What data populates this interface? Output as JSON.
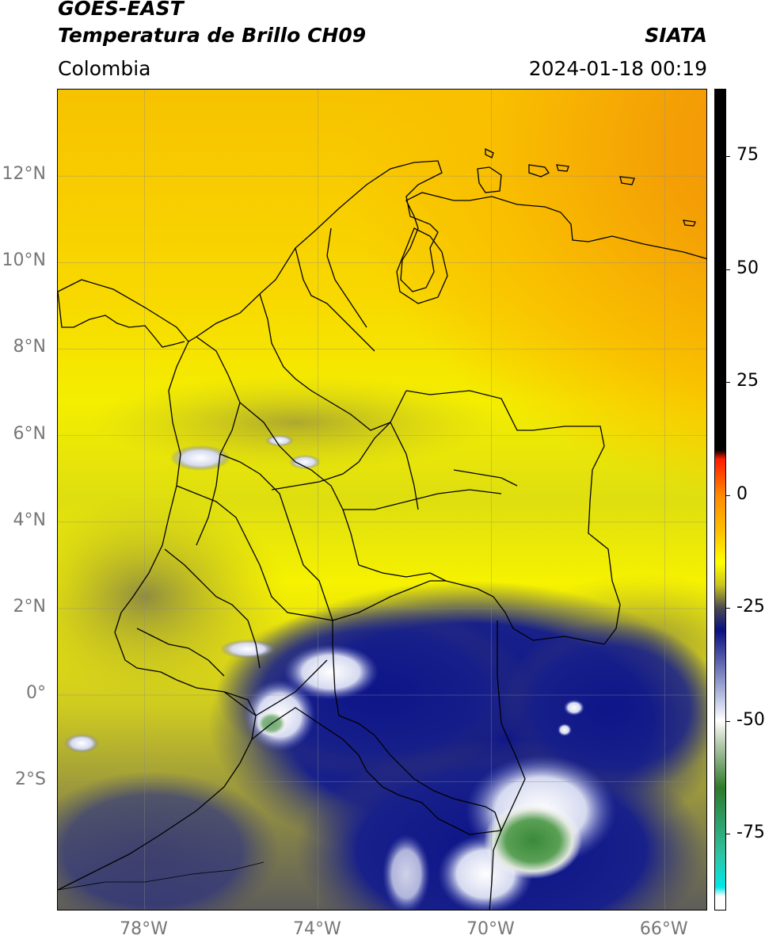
{
  "header": {
    "satellite": "GOES-EAST",
    "product": "Temperatura de Brillo CH09",
    "brand": "SIATA",
    "region": "Colombia",
    "timestamp": "2024-01-18 00:19"
  },
  "map": {
    "lon_range": [
      -80,
      -65
    ],
    "lat_range": [
      -5,
      14
    ],
    "lat_ticks": [
      {
        "value": 12,
        "label": "12°N"
      },
      {
        "value": 10,
        "label": "10°N"
      },
      {
        "value": 8,
        "label": "8°N"
      },
      {
        "value": 6,
        "label": "6°N"
      },
      {
        "value": 4,
        "label": "4°N"
      },
      {
        "value": 2,
        "label": "2°N"
      },
      {
        "value": 0,
        "label": "0°"
      },
      {
        "value": -2,
        "label": "2°S"
      }
    ],
    "lon_ticks": [
      {
        "value": -78,
        "label": "78°W"
      },
      {
        "value": -74,
        "label": "74°W"
      },
      {
        "value": -70,
        "label": "70°W"
      },
      {
        "value": -66,
        "label": "66°W"
      }
    ],
    "gridlines": true,
    "colors": {
      "warm_orange": "#f28a0a",
      "orange": "#f9b900",
      "yellow": "#f8f500",
      "olive": "#c8c424",
      "dark_olive": "#6f6d55",
      "navy": "#101a86",
      "white": "#ffffff",
      "green": "#3f8e3c",
      "border": "#000000"
    }
  },
  "colorbar": {
    "unit_range": [
      -92,
      90
    ],
    "ticks": [
      {
        "value": 75,
        "label": "75"
      },
      {
        "value": 50,
        "label": "50"
      },
      {
        "value": 25,
        "label": "25"
      },
      {
        "value": 0,
        "label": "0"
      },
      {
        "value": -25,
        "label": "-25"
      },
      {
        "value": -50,
        "label": "-50"
      },
      {
        "value": -75,
        "label": "-75"
      }
    ],
    "stops": [
      {
        "value": 90,
        "color": "#000000"
      },
      {
        "value": 10,
        "color": "#000000"
      },
      {
        "value": 8,
        "color": "#ff1a00"
      },
      {
        "value": 0,
        "color": "#ff8a00"
      },
      {
        "value": -8,
        "color": "#ffc000"
      },
      {
        "value": -15,
        "color": "#ffff00"
      },
      {
        "value": -20,
        "color": "#c8c41e"
      },
      {
        "value": -25,
        "color": "#4a4a52"
      },
      {
        "value": -30,
        "color": "#0a1080"
      },
      {
        "value": -45,
        "color": "#bcc4e4"
      },
      {
        "value": -50,
        "color": "#ffffff"
      },
      {
        "value": -55,
        "color": "#b8ccb0"
      },
      {
        "value": -65,
        "color": "#2e7a2a"
      },
      {
        "value": -80,
        "color": "#2ec4a4"
      },
      {
        "value": -87,
        "color": "#00e8e8"
      },
      {
        "value": -89,
        "color": "#ffffff"
      },
      {
        "value": -92,
        "color": "#ffffff"
      }
    ]
  }
}
